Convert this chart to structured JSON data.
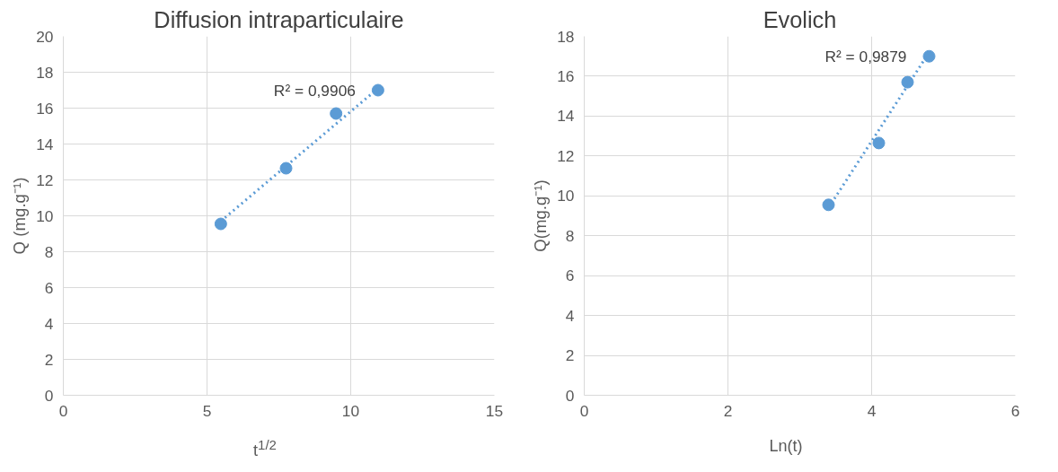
{
  "chart_data": [
    {
      "type": "scatter",
      "title": "Diffusion intraparticulaire",
      "xlabel": "t$^{1/2}$",
      "ylabel": "Q (mg.g⁻¹)",
      "xlim": [
        0,
        15
      ],
      "xticks": [
        0,
        5,
        10,
        15
      ],
      "ylim": [
        0,
        20
      ],
      "yticks": [
        0,
        2,
        4,
        6,
        8,
        10,
        12,
        14,
        16,
        18,
        20
      ],
      "grid": true,
      "marker": "circle",
      "series": [
        {
          "color": "#5b9bd5",
          "x": [
            5.48,
            7.75,
            9.49,
            10.95
          ],
          "values": [
            9.55,
            12.65,
            15.7,
            17.0
          ]
        },
        {
          "type": "line",
          "line_style": "dotted",
          "marker": "none",
          "color": "#5b9bd5",
          "x": [
            5.48,
            10.95
          ],
          "values": [
            9.7,
            17.1
          ]
        }
      ],
      "annotations": [
        "R² = 0,9906"
      ]
    },
    {
      "type": "scatter",
      "title": "Evolich",
      "xlabel": "Ln(t)",
      "ylabel": "Q(mg.g⁻¹)",
      "xlim": [
        0,
        6
      ],
      "xticks": [
        0,
        2,
        4,
        6
      ],
      "ylim": [
        0,
        18
      ],
      "yticks": [
        0,
        2,
        4,
        6,
        8,
        10,
        12,
        14,
        16,
        18
      ],
      "grid": true,
      "marker": "circle",
      "series": [
        {
          "color": "#5b9bd5",
          "x": [
            3.4,
            4.1,
            4.5,
            4.8
          ],
          "values": [
            9.55,
            12.65,
            15.7,
            17.0
          ]
        },
        {
          "type": "line",
          "line_style": "dotted",
          "marker": "none",
          "color": "#5b9bd5",
          "x": [
            3.4,
            4.8
          ],
          "values": [
            9.4,
            17.2
          ]
        }
      ],
      "annotations": [
        "R² = 0,9879"
      ]
    }
  ]
}
